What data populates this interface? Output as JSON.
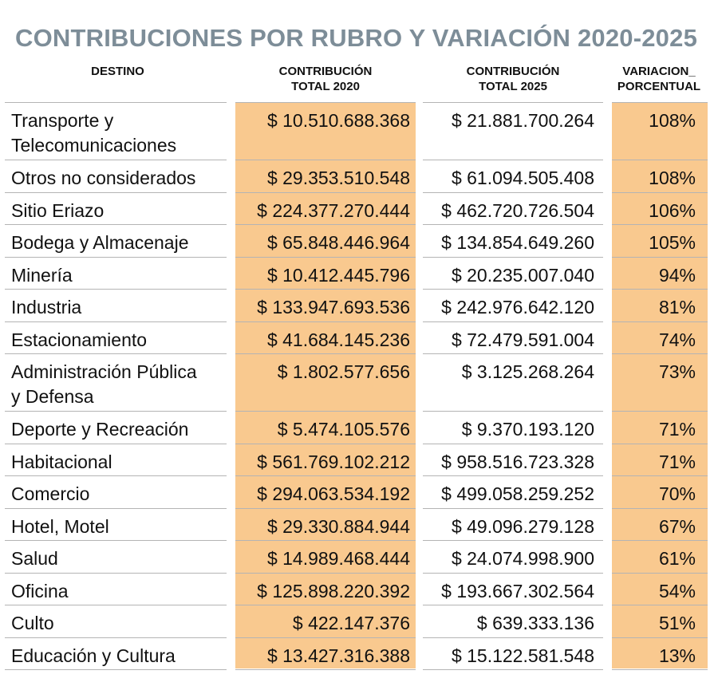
{
  "chart_data": {
    "type": "table",
    "title": "CONTRIBUCIONES POR RUBRO Y VARIACIÓN 2020-2025",
    "columns": [
      "DESTINO",
      "CONTRIBUCIÓN\nTOTAL 2020",
      "CONTRIBUCIÓN\nTOTAL 2025",
      "VARIACION_\nPORCENTUAL"
    ],
    "rows": [
      [
        "Transporte y\nTelecomunicaciones",
        "$ 10.510.688.368",
        "$ 21.881.700.264",
        "108%"
      ],
      [
        "Otros no considerados",
        "$ 29.353.510.548",
        "$ 61.094.505.408",
        "108%"
      ],
      [
        "Sitio Eriazo",
        "$ 224.377.270.444",
        "$ 462.720.726.504",
        "106%"
      ],
      [
        "Bodega y Almacenaje",
        "$ 65.848.446.964",
        "$ 134.854.649.260",
        "105%"
      ],
      [
        "Minería",
        "$ 10.412.445.796",
        "$ 20.235.007.040",
        "94%"
      ],
      [
        "Industria",
        "$ 133.947.693.536",
        "$ 242.976.642.120",
        "81%"
      ],
      [
        "Estacionamiento",
        "$ 41.684.145.236",
        "$ 72.479.591.004",
        "74%"
      ],
      [
        "Administración Pública\ny Defensa",
        "$ 1.802.577.656",
        "$ 3.125.268.264",
        "73%"
      ],
      [
        "Deporte y Recreación",
        "$ 5.474.105.576",
        "$ 9.370.193.120",
        "71%"
      ],
      [
        "Habitacional",
        "$ 561.769.102.212",
        "$ 958.516.723.328",
        "71%"
      ],
      [
        "Comercio",
        "$ 294.063.534.192",
        "$ 499.058.259.252",
        "70%"
      ],
      [
        "Hotel, Motel",
        "$ 29.330.884.944",
        "$ 49.096.279.128",
        "67%"
      ],
      [
        "Salud",
        "$ 14.989.468.444",
        "$ 24.074.998.900",
        "61%"
      ],
      [
        "Oficina",
        "$ 125.898.220.392",
        "$ 193.667.302.564",
        "54%"
      ],
      [
        "Culto",
        "$ 422.147.376",
        "$ 639.333.136",
        "51%"
      ],
      [
        "Educación y Cultura",
        "$ 13.427.316.388",
        "$ 15.122.581.548",
        "13%"
      ]
    ],
    "highlight_color": "#f9c98f",
    "title_color": "#7d8d98"
  }
}
